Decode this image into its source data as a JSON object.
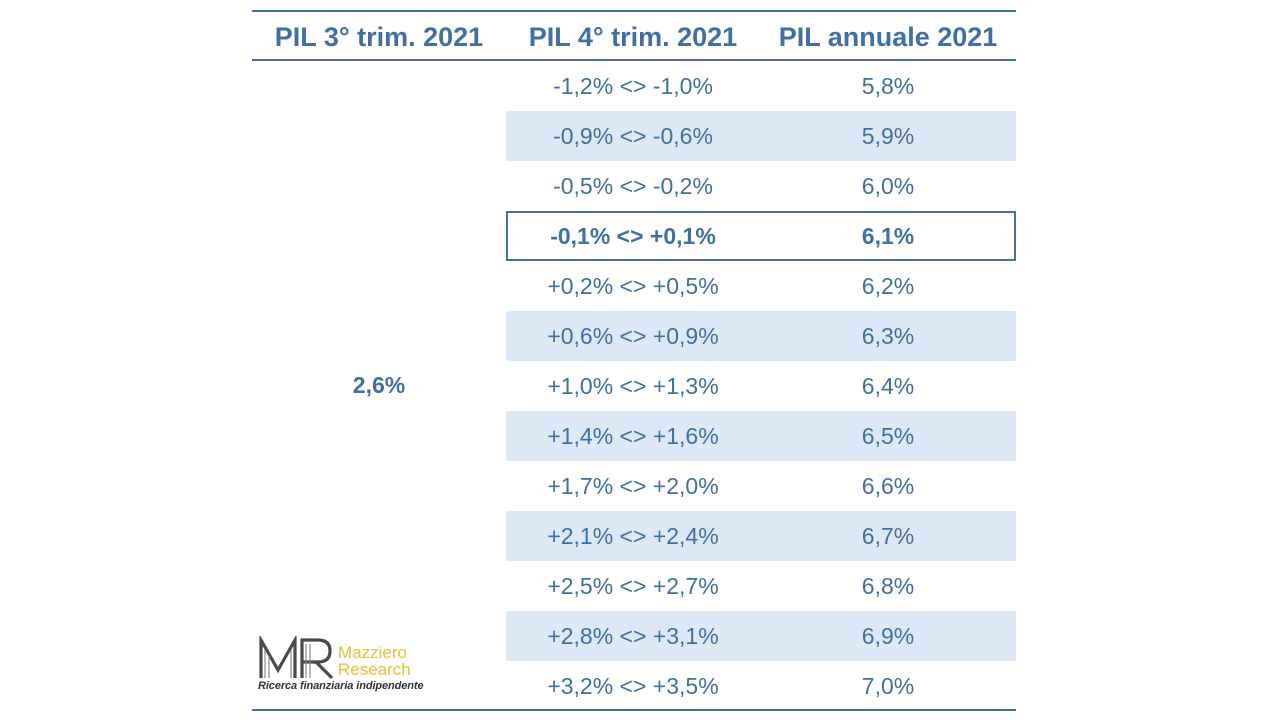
{
  "headers": {
    "q3": "PIL 3° trim. 2021",
    "q4": "PIL 4° trim. 2021",
    "annual": "PIL annuale 2021"
  },
  "q3_value": "2,6%",
  "rows": [
    {
      "range": "-1,2% <> -1,0%",
      "annual": "5,8%",
      "shaded": false,
      "highlight": false
    },
    {
      "range": "-0,9% <> -0,6%",
      "annual": "5,9%",
      "shaded": true,
      "highlight": false
    },
    {
      "range": "-0,5% <> -0,2%",
      "annual": "6,0%",
      "shaded": false,
      "highlight": false
    },
    {
      "range": "-0,1% <> +0,1%",
      "annual": "6,1%",
      "shaded": false,
      "highlight": true
    },
    {
      "range": "+0,2% <> +0,5%",
      "annual": "6,2%",
      "shaded": false,
      "highlight": false
    },
    {
      "range": "+0,6% <> +0,9%",
      "annual": "6,3%",
      "shaded": true,
      "highlight": false
    },
    {
      "range": "+1,0% <> +1,3%",
      "annual": "6,4%",
      "shaded": false,
      "highlight": false
    },
    {
      "range": "+1,4% <> +1,6%",
      "annual": "6,5%",
      "shaded": true,
      "highlight": false
    },
    {
      "range": "+1,7% <> +2,0%",
      "annual": "6,6%",
      "shaded": false,
      "highlight": false
    },
    {
      "range": "+2,1% <> +2,4%",
      "annual": "6,7%",
      "shaded": true,
      "highlight": false
    },
    {
      "range": "+2,5% <> +2,7%",
      "annual": "6,8%",
      "shaded": false,
      "highlight": false
    },
    {
      "range": "+2,8% <> +3,1%",
      "annual": "6,9%",
      "shaded": true,
      "highlight": false
    },
    {
      "range": "+3,2% <> +3,5%",
      "annual": "7,0%",
      "shaded": false,
      "highlight": false
    }
  ],
  "logo": {
    "mark": "MR",
    "name_line1": "Mazziero",
    "name_line2": "Research",
    "tagline": "Ricerca finanziaria indipendente"
  },
  "colors": {
    "text": "#3f6fa8",
    "shade": "#dde9f6",
    "logo_accent": "#e8c12f"
  }
}
